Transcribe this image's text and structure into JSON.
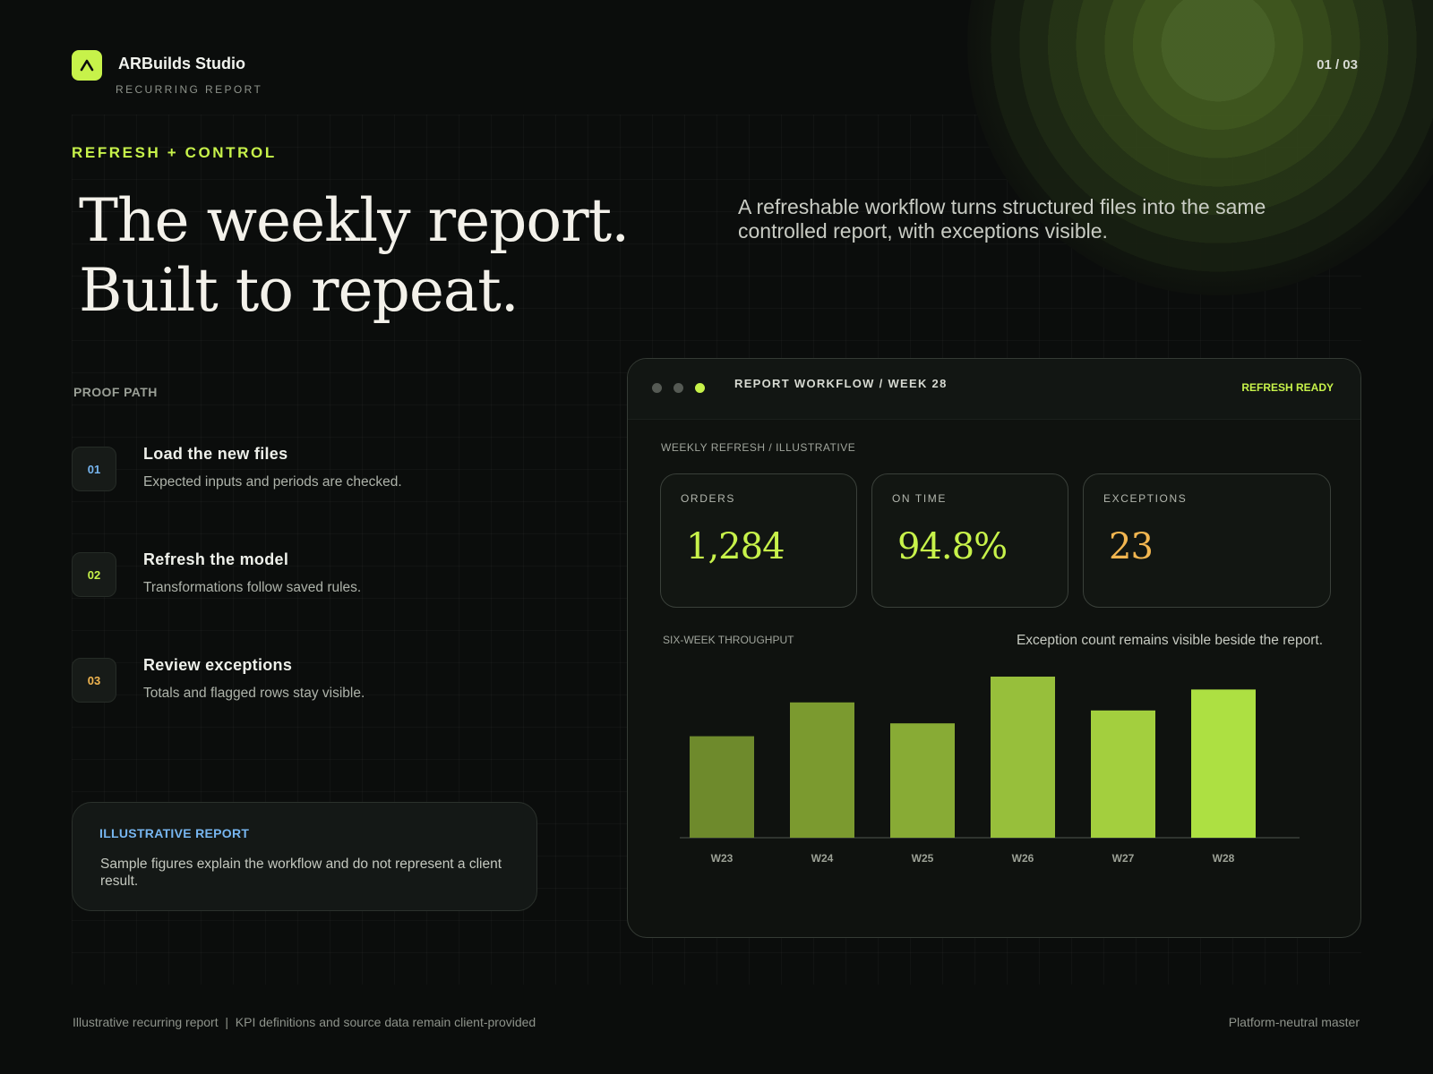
{
  "brand": {
    "name": "ARBuilds Studio",
    "subtitle": "RECURRING REPORT",
    "logo_icon": "chevron-up-icon",
    "accent": "#c7f24a"
  },
  "page_number": "01 / 03",
  "eyebrow": "REFRESH + CONTROL",
  "headline": {
    "line1": "The weekly report.",
    "line2": "Built to repeat."
  },
  "intro": "A refreshable workflow turns structured files into the same controlled report, with exceptions visible.",
  "proof_path": {
    "label": "PROOF PATH",
    "steps": [
      {
        "number": "01",
        "title": "Load the new files",
        "description": "Expected inputs and periods are checked.",
        "color": "#77b6f0"
      },
      {
        "number": "02",
        "title": "Refresh the model",
        "description": "Transformations follow saved rules.",
        "color": "#c7f24a"
      },
      {
        "number": "03",
        "title": "Review exceptions",
        "description": "Totals and flagged rows stay visible.",
        "color": "#f2b650"
      }
    ]
  },
  "note": {
    "title": "ILLUSTRATIVE REPORT",
    "body": "Sample figures explain the workflow and do not represent a client result."
  },
  "panel": {
    "title": "REPORT WORKFLOW / WEEK 28",
    "status": "REFRESH READY",
    "subtitle": "WEEKLY REFRESH / ILLUSTRATIVE",
    "kpis": [
      {
        "label": "ORDERS",
        "value": "1,284",
        "color": "#c7f24a"
      },
      {
        "label": "ON TIME",
        "value": "94.8%",
        "color": "#c7f24a"
      },
      {
        "label": "EXCEPTIONS",
        "value": "23",
        "color": "#f2b650"
      }
    ],
    "chart_label": "SIX-WEEK THROUGHPUT",
    "chart_note": "Exception count remains visible beside the report."
  },
  "chart_data": {
    "type": "bar",
    "categories": [
      "W23",
      "W24",
      "W25",
      "W26",
      "W27",
      "W28"
    ],
    "values": [
      63,
      84,
      71,
      100,
      79,
      92
    ],
    "colors": [
      "#6e8a2c",
      "#7b9a2f",
      "#88ab35",
      "#97bf3b",
      "#a3cf3e",
      "#ade042"
    ],
    "title": "SIX-WEEK THROUGHPUT",
    "ylim": [
      0,
      100
    ],
    "grid": false
  },
  "footer": {
    "left": "Illustrative recurring report  |  KPI definitions and source data remain client-provided",
    "right": "Platform-neutral master"
  }
}
